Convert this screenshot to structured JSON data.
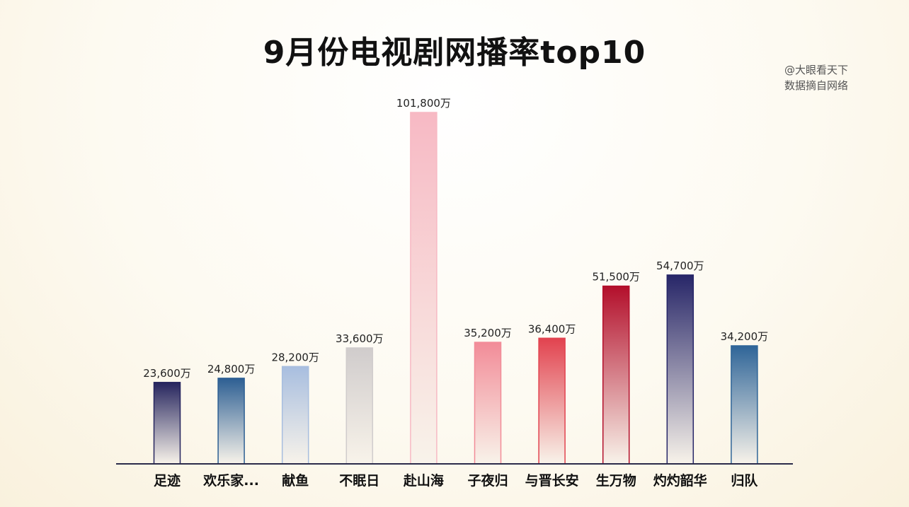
{
  "header": {
    "title": "9月份电视剧网播率top10",
    "source_line1": "@大眼看天下",
    "source_line2": "数据摘自网络"
  },
  "chart_data": {
    "type": "bar",
    "title": "9月份电视剧网播率top10",
    "xlabel": "",
    "ylabel": "",
    "unit": "万",
    "ylim": [
      0,
      110000
    ],
    "grid": false,
    "legend": "none",
    "categories": [
      "足迹",
      "欢乐家...",
      "献鱼",
      "不眠日",
      "赴山海",
      "子夜归",
      "与晋长安",
      "生万物",
      "灼灼韶华",
      "归队"
    ],
    "values": [
      23600,
      24800,
      28200,
      33600,
      101800,
      35200,
      36400,
      51500,
      54700,
      34200
    ],
    "labels": [
      "23,600万",
      "24,800万",
      "28,200万",
      "33,600万",
      "101,800万",
      "35,200万",
      "36,400万",
      "51,500万",
      "54,700万",
      "34,200万"
    ],
    "colors": [
      "#26255e",
      "#2d5f93",
      "#a8bedf",
      "#d0cccc",
      "#f7b9c4",
      "#f28c98",
      "#e2434f",
      "#b30f2b",
      "#272668",
      "#2f6598"
    ]
  }
}
